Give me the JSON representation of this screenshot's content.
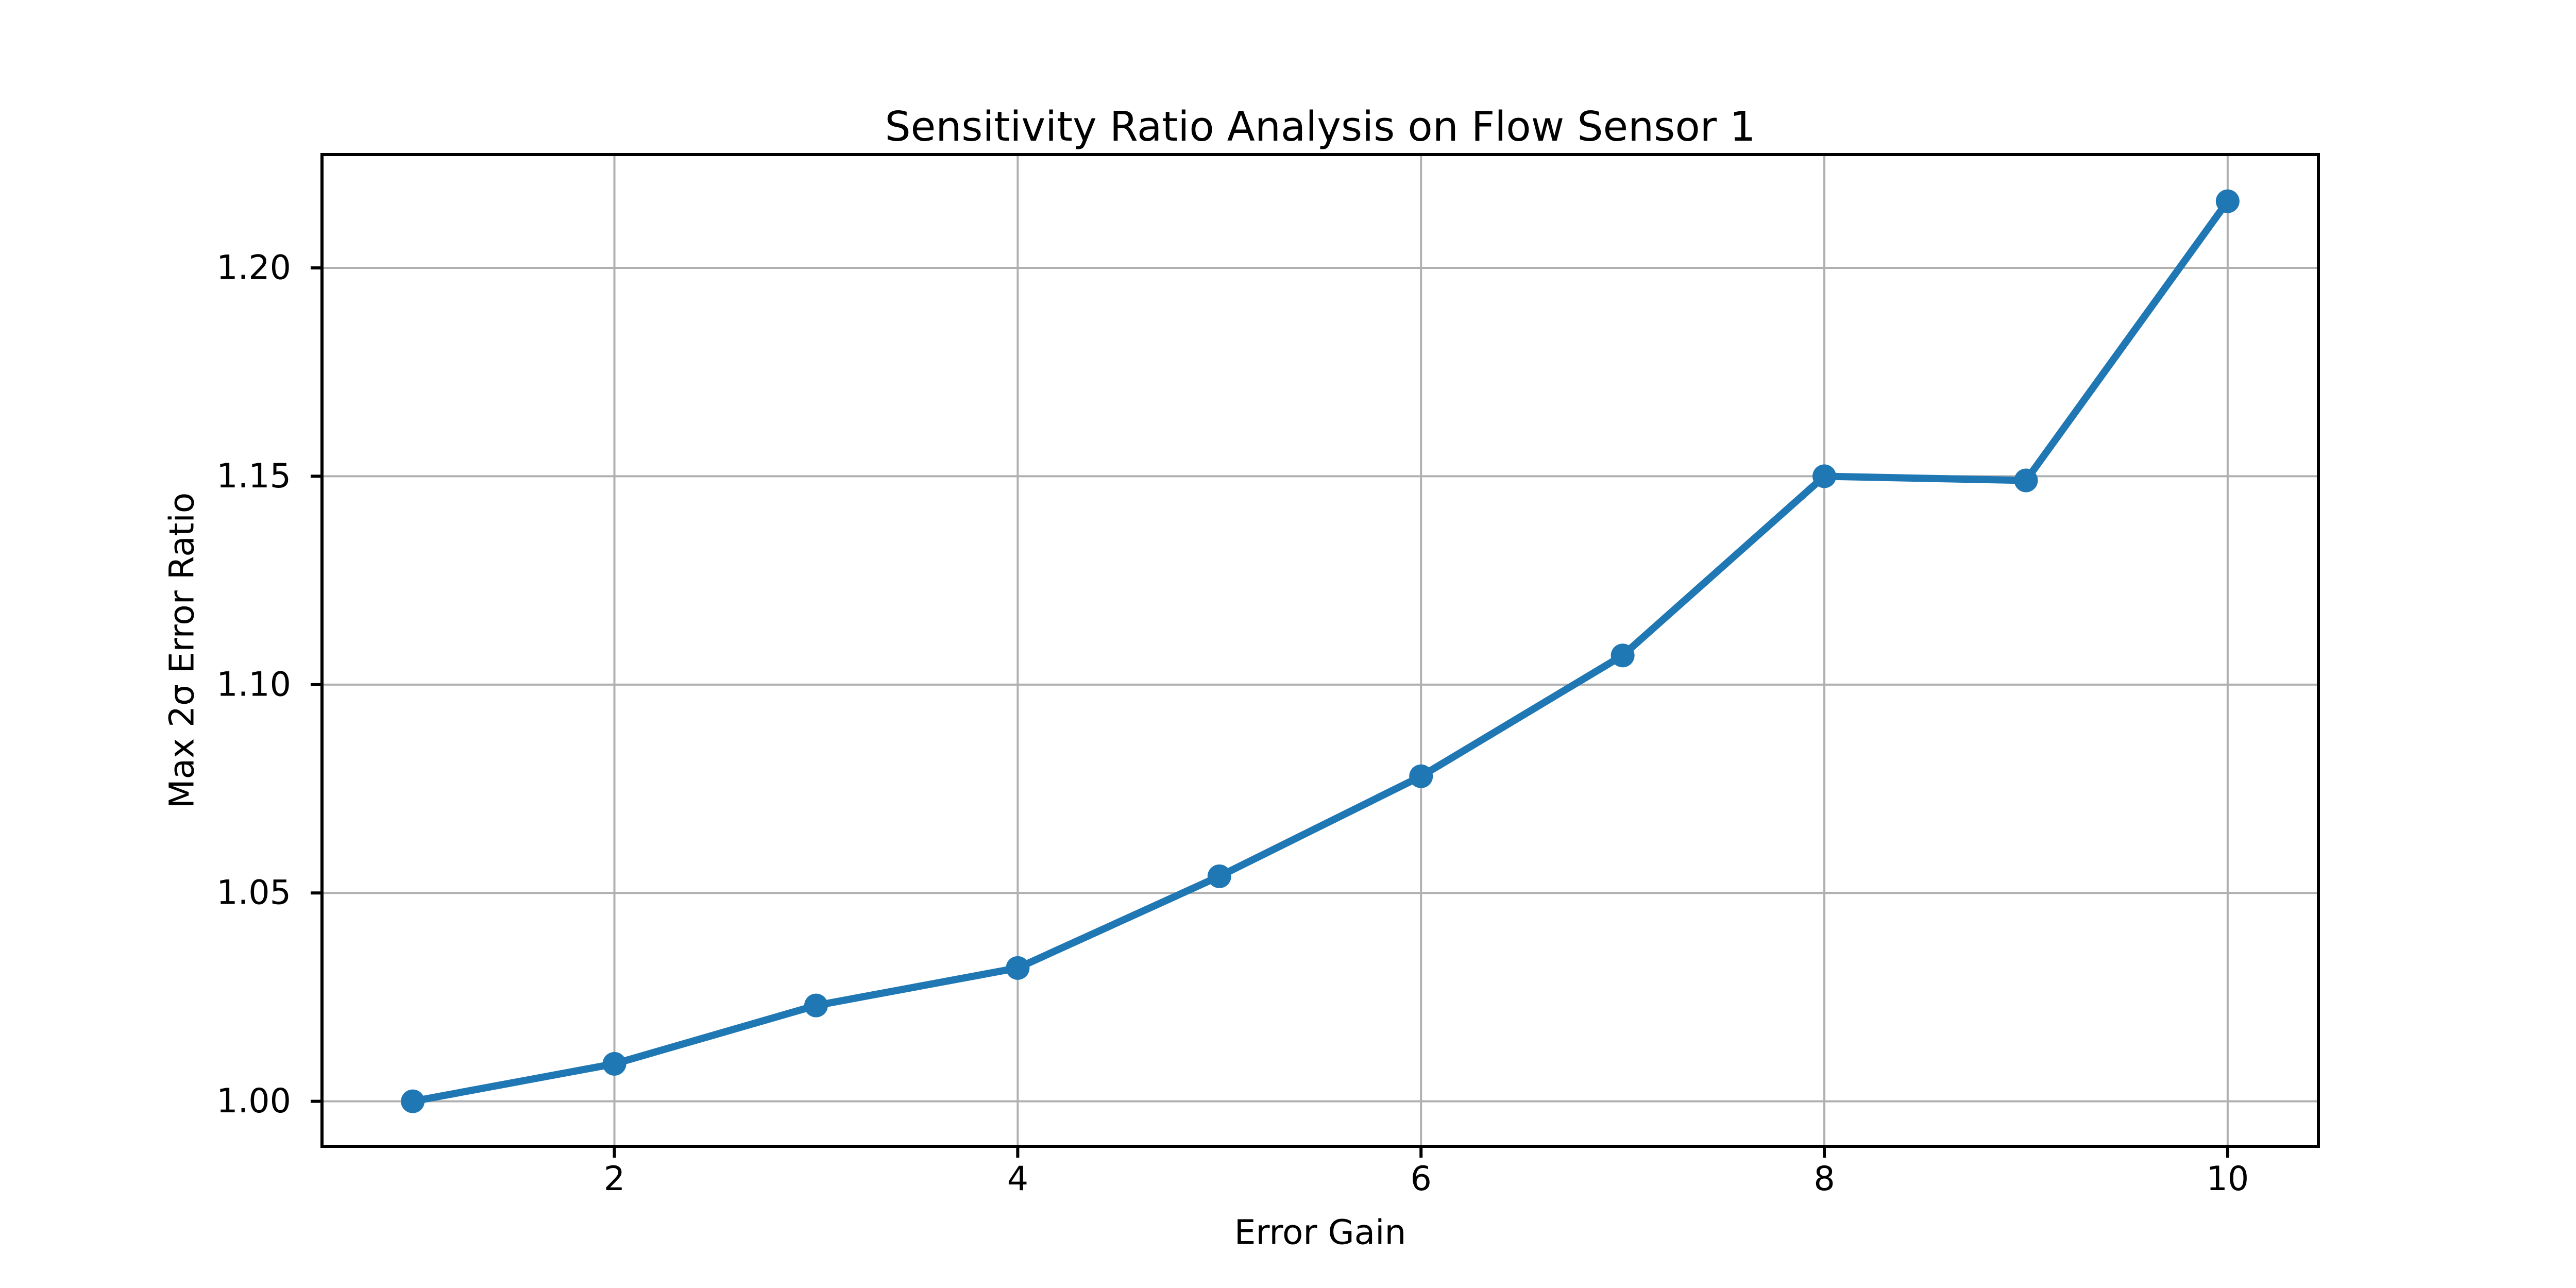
{
  "figure": {
    "background": "#ffffff",
    "plot_bg": "#ffffff"
  },
  "chart_data": {
    "type": "line",
    "title": "Sensitivity Ratio Analysis on Flow Sensor 1",
    "xlabel": "Error Gain",
    "ylabel": "Max 2σ Error Ratio",
    "x": [
      1,
      2,
      3,
      4,
      5,
      6,
      7,
      8,
      9,
      10
    ],
    "series": [
      {
        "name": "Max 2σ Error Ratio",
        "values": [
          1.0,
          1.009,
          1.023,
          1.032,
          1.054,
          1.078,
          1.107,
          1.15,
          1.149,
          1.216
        ]
      }
    ],
    "xlim": [
      0.55,
      10.45
    ],
    "ylim": [
      0.9892,
      1.2272
    ],
    "xtick_values": [
      2,
      4,
      6,
      8,
      10
    ],
    "xtick_labels": [
      "2",
      "4",
      "6",
      "8",
      "10"
    ],
    "ytick_values": [
      1.0,
      1.05,
      1.1,
      1.15,
      1.2
    ],
    "ytick_labels": [
      "1.00",
      "1.05",
      "1.10",
      "1.15",
      "1.20"
    ],
    "grid": true,
    "legend": null,
    "line_color": "#1f77b4",
    "marker": "o",
    "marker_color": "#1f77b4",
    "grid_color": "#b0b0b0",
    "spine_color": "#000000"
  }
}
